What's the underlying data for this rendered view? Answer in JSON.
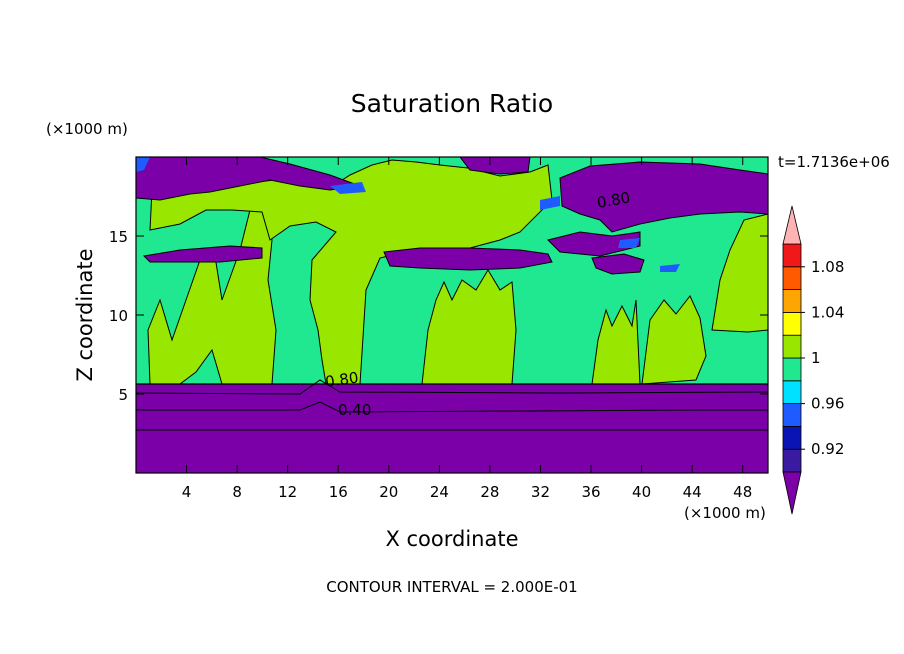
{
  "chart_data": {
    "type": "heatmap",
    "title": "Saturation Ratio",
    "xlabel": "X coordinate",
    "ylabel": "Z coordinate",
    "x_unit": "(×1000 m)",
    "y_unit": "(×1000 m)",
    "time_label": "t=1.7136e+06",
    "footer": "CONTOUR INTERVAL = 2.000E-01",
    "xlim": [
      0,
      50
    ],
    "ylim": [
      0,
      20
    ],
    "x_ticks": [
      4,
      8,
      12,
      16,
      20,
      24,
      28,
      32,
      36,
      40,
      44,
      48
    ],
    "y_ticks": [
      5,
      10,
      15
    ],
    "grid": false,
    "colorbar": {
      "levels": [
        0.92,
        0.94,
        0.96,
        0.98,
        1.0,
        1.02,
        1.04,
        1.06,
        1.08
      ],
      "tick_labels": [
        "0.92",
        "0.96",
        "1",
        "1.04",
        "1.08"
      ],
      "colors": [
        "#7b00a8",
        "#3a1aa0",
        "#0a14b4",
        "#1f5cff",
        "#00e0ff",
        "#20e890",
        "#99e600",
        "#ffff00",
        "#ffa500",
        "#ff5a00",
        "#f01818",
        "#ffb3b3"
      ],
      "extend": "both"
    },
    "contour_labels": [
      "0.80",
      "0.80",
      "0.40"
    ],
    "bands": [
      {
        "z_range": [
          0,
          5.5
        ],
        "value": "<0.92",
        "description": "dry lower layer"
      },
      {
        "z_range": [
          5.5,
          19
        ],
        "value": "0.98-1.02",
        "description": "near-saturated middle layer"
      },
      {
        "z_range": [
          13.3,
          14.3
        ],
        "value": "<0.92",
        "description": "dry streak"
      },
      {
        "z_range": [
          17,
          20
        ],
        "value": "<0.92",
        "description": "dry upper patches"
      }
    ]
  }
}
